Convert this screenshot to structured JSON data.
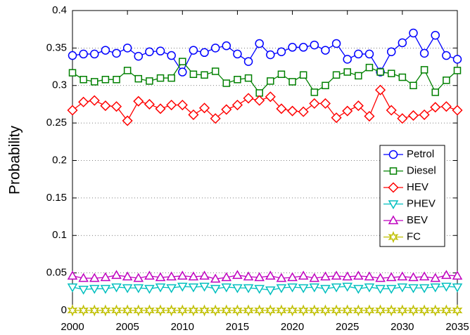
{
  "chart_data": {
    "type": "line",
    "ylabel": "Probability",
    "x": [
      2000,
      2001,
      2002,
      2003,
      2004,
      2005,
      2006,
      2007,
      2008,
      2009,
      2010,
      2011,
      2012,
      2013,
      2014,
      2015,
      2016,
      2017,
      2018,
      2019,
      2020,
      2021,
      2022,
      2023,
      2024,
      2025,
      2026,
      2027,
      2028,
      2029,
      2030,
      2031,
      2032,
      2033,
      2034,
      2035
    ],
    "xlim": [
      2000,
      2035
    ],
    "xticks": [
      2000,
      2005,
      2010,
      2015,
      2020,
      2025,
      2030,
      2035
    ],
    "ylim": [
      0,
      0.4
    ],
    "yticks": [
      0,
      0.05,
      0.1,
      0.15,
      0.2,
      0.25,
      0.3,
      0.35,
      0.4
    ],
    "grid": true,
    "legend": "right",
    "series": [
      {
        "name": "Petrol",
        "color": "#0000ff",
        "marker": "circle",
        "values": [
          0.34,
          0.342,
          0.342,
          0.347,
          0.343,
          0.35,
          0.339,
          0.345,
          0.346,
          0.34,
          0.318,
          0.347,
          0.344,
          0.35,
          0.353,
          0.342,
          0.332,
          0.356,
          0.341,
          0.345,
          0.351,
          0.351,
          0.354,
          0.347,
          0.356,
          0.335,
          0.342,
          0.342,
          0.318,
          0.345,
          0.357,
          0.37,
          0.343,
          0.367,
          0.34,
          0.335
        ]
      },
      {
        "name": "Diesel",
        "color": "#008000",
        "marker": "square",
        "values": [
          0.317,
          0.308,
          0.305,
          0.308,
          0.308,
          0.32,
          0.309,
          0.306,
          0.31,
          0.31,
          0.332,
          0.315,
          0.314,
          0.319,
          0.303,
          0.308,
          0.31,
          0.29,
          0.306,
          0.315,
          0.305,
          0.314,
          0.291,
          0.3,
          0.314,
          0.318,
          0.313,
          0.324,
          0.318,
          0.316,
          0.311,
          0.3,
          0.321,
          0.291,
          0.307,
          0.32
        ]
      },
      {
        "name": "HEV",
        "color": "#ff0000",
        "marker": "diamond",
        "values": [
          0.267,
          0.278,
          0.28,
          0.273,
          0.272,
          0.253,
          0.279,
          0.275,
          0.269,
          0.274,
          0.274,
          0.261,
          0.27,
          0.256,
          0.268,
          0.274,
          0.283,
          0.28,
          0.285,
          0.269,
          0.266,
          0.265,
          0.276,
          0.276,
          0.257,
          0.266,
          0.273,
          0.259,
          0.294,
          0.267,
          0.256,
          0.26,
          0.261,
          0.271,
          0.272,
          0.267
        ]
      },
      {
        "name": "PHEV",
        "color": "#00bfbf",
        "marker": "triangle-down",
        "values": [
          0.031,
          0.028,
          0.029,
          0.029,
          0.031,
          0.03,
          0.03,
          0.029,
          0.031,
          0.03,
          0.032,
          0.031,
          0.032,
          0.029,
          0.031,
          0.03,
          0.03,
          0.029,
          0.027,
          0.03,
          0.031,
          0.03,
          0.031,
          0.029,
          0.031,
          0.032,
          0.029,
          0.031,
          0.029,
          0.029,
          0.031,
          0.03,
          0.03,
          0.031,
          0.032,
          0.031
        ]
      },
      {
        "name": "BEV",
        "color": "#bf00bf",
        "marker": "triangle-up",
        "values": [
          0.046,
          0.043,
          0.043,
          0.044,
          0.047,
          0.045,
          0.043,
          0.046,
          0.044,
          0.045,
          0.046,
          0.045,
          0.046,
          0.042,
          0.044,
          0.047,
          0.045,
          0.044,
          0.046,
          0.043,
          0.044,
          0.046,
          0.043,
          0.045,
          0.046,
          0.045,
          0.046,
          0.045,
          0.043,
          0.044,
          0.045,
          0.044,
          0.045,
          0.043,
          0.047,
          0.046
        ]
      },
      {
        "name": "FC",
        "color": "#bfbf00",
        "marker": "star",
        "values": [
          0,
          0,
          0,
          0,
          0,
          0,
          0,
          0,
          0,
          0,
          0,
          0,
          0,
          0,
          0,
          0,
          0,
          0,
          0,
          0,
          0,
          0,
          0,
          0,
          0,
          0,
          0,
          0,
          0,
          0,
          0,
          0,
          0,
          0,
          0,
          0
        ]
      }
    ]
  }
}
